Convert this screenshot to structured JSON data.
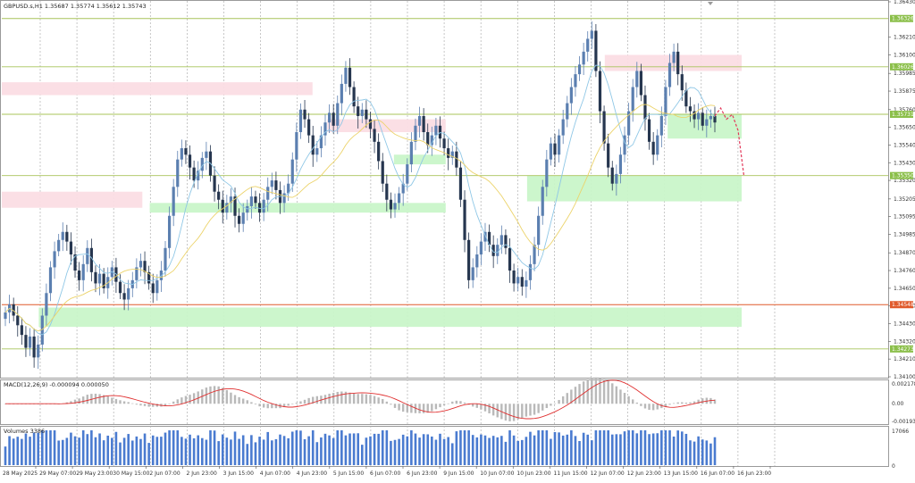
{
  "header": {
    "symbol_line": "GBPUSD.s,H1  1.35687 1.35774 1.35612 1.35743"
  },
  "panels": {
    "macd_label": "MACD(12,26,9) -0.000094 0.000050",
    "volume_label": "Volumes 3386"
  },
  "colors": {
    "bull": "#5b7fb0",
    "bear": "#26364f",
    "ma_fast": "#8fc7e6",
    "ma_slow": "#ecd36a",
    "level_line": "#a8c45a",
    "red_line": "#e05a2b",
    "supply_zone": "#fbdde4",
    "demand_zone": "#c9f5c9",
    "forecast": "#e3385a",
    "macd_hist": "#b9b9b9",
    "macd_signal": "#e03030",
    "volume": "#4a7bd0"
  },
  "chart_data": {
    "type": "candlestick",
    "ylim": [
      1.341,
      1.3643
    ],
    "price_ticks": [
      "1.36430",
      "1.36210",
      "1.36100",
      "1.35985",
      "1.35875",
      "1.35760",
      "1.35650",
      "1.35540",
      "1.35430",
      "1.35320",
      "1.35205",
      "1.35095",
      "1.34985",
      "1.34870",
      "1.34760",
      "1.34650",
      "1.34540",
      "1.34430",
      "1.34320",
      "1.34210",
      "1.34100"
    ],
    "price_tick_values": [
      1.3643,
      1.3621,
      1.361,
      1.35985,
      1.35875,
      1.3576,
      1.3565,
      1.3554,
      1.3543,
      1.3532,
      1.35205,
      1.35095,
      1.34985,
      1.3487,
      1.3476,
      1.3465,
      1.3454,
      1.3443,
      1.3432,
      1.3421,
      1.341
    ],
    "level_labels": [
      "1.36326",
      "1.36026",
      "1.35731",
      "1.35350",
      "1.34548",
      "1.34273"
    ],
    "level_values": [
      1.36326,
      1.36026,
      1.35731,
      1.3535,
      1.34548,
      1.34273
    ],
    "level_colors": [
      "#8bbf4a",
      "#8bbf4a",
      "#8bbf4a",
      "#8bbf4a",
      "#e05a2b",
      "#8bbf4a"
    ],
    "time_labels": [
      "28 May 2025",
      "29 May 07:00",
      "29 May 23:00",
      "30 May 15:00",
      "2 Jun 07:00",
      "2 Jun 23:00",
      "3 Jun 15:00",
      "4 Jun 07:00",
      "4 Jun 23:00",
      "5 Jun 15:00",
      "6 Jun 07:00",
      "6 Jun 23:00",
      "9 Jun 15:00",
      "10 Jun 07:00",
      "10 Jun 23:00",
      "11 Jun 15:00",
      "12 Jun 07:00",
      "12 Jun 23:00",
      "13 Jun 15:00",
      "16 Jun 07:00",
      "16 Jun 23:00"
    ],
    "zones": [
      {
        "kind": "supply",
        "x0": 0.0,
        "x1": 0.42,
        "p0": 1.3593,
        "p1": 1.3585
      },
      {
        "kind": "supply",
        "x0": 0.0,
        "x1": 0.19,
        "p0": 1.3525,
        "p1": 1.3515
      },
      {
        "kind": "supply",
        "x0": 0.44,
        "x1": 0.6,
        "p0": 1.357,
        "p1": 1.3562
      },
      {
        "kind": "supply",
        "x0": 0.815,
        "x1": 1.0,
        "p0": 1.361,
        "p1": 1.36
      },
      {
        "kind": "demand",
        "x0": 0.2,
        "x1": 0.6,
        "p0": 1.3518,
        "p1": 1.3512
      },
      {
        "kind": "demand",
        "x0": 0.53,
        "x1": 0.6,
        "p0": 1.3548,
        "p1": 1.3542
      },
      {
        "kind": "demand",
        "x0": 0.71,
        "x1": 1.0,
        "p0": 1.3535,
        "p1": 1.3519
      },
      {
        "kind": "demand",
        "x0": 0.9,
        "x1": 1.0,
        "p0": 1.3573,
        "p1": 1.3558
      },
      {
        "kind": "demand",
        "x0": 0.05,
        "x1": 1.0,
        "p0": 1.3453,
        "p1": 1.3441
      }
    ],
    "close_series": [
      1.345,
      1.3455,
      1.3448,
      1.3442,
      1.3436,
      1.3428,
      1.3435,
      1.3422,
      1.343,
      1.3448,
      1.3462,
      1.3478,
      1.3488,
      1.3495,
      1.35,
      1.3494,
      1.3486,
      1.3476,
      1.347,
      1.348,
      1.349,
      1.3475,
      1.3468,
      1.3474,
      1.3465,
      1.3472,
      1.3478,
      1.3469,
      1.3462,
      1.3458,
      1.3465,
      1.347,
      1.3478,
      1.3482,
      1.3475,
      1.3468,
      1.3462,
      1.347,
      1.3476,
      1.349,
      1.351,
      1.3528,
      1.3545,
      1.3552,
      1.3548,
      1.354,
      1.3532,
      1.3538,
      1.3546,
      1.355,
      1.3535,
      1.3525,
      1.352,
      1.3512,
      1.3518,
      1.3522,
      1.351,
      1.3505,
      1.3512,
      1.3516,
      1.3522,
      1.3518,
      1.3512,
      1.352,
      1.3528,
      1.3532,
      1.3526,
      1.3518,
      1.3524,
      1.353,
      1.3545,
      1.3562,
      1.3576,
      1.357,
      1.356,
      1.3548,
      1.3552,
      1.356,
      1.3568,
      1.3574,
      1.3566,
      1.358,
      1.3592,
      1.3602,
      1.359,
      1.3578,
      1.3572,
      1.3576,
      1.357,
      1.3564,
      1.3556,
      1.3544,
      1.353,
      1.352,
      1.3514,
      1.3518,
      1.3524,
      1.353,
      1.3542,
      1.3556,
      1.3566,
      1.3572,
      1.3562,
      1.3554,
      1.356,
      1.3566,
      1.3558,
      1.3552,
      1.3546,
      1.355,
      1.354,
      1.352,
      1.3495,
      1.347,
      1.3478,
      1.3486,
      1.3494,
      1.35,
      1.3492,
      1.3485,
      1.3492,
      1.3498,
      1.349,
      1.3476,
      1.3468,
      1.3472,
      1.3466,
      1.347,
      1.348,
      1.3492,
      1.351,
      1.3528,
      1.3545,
      1.3555,
      1.3548,
      1.356,
      1.357,
      1.358,
      1.359,
      1.3598,
      1.3604,
      1.3612,
      1.362,
      1.3625,
      1.36,
      1.3575,
      1.3555,
      1.354,
      1.353,
      1.3536,
      1.3548,
      1.356,
      1.3575,
      1.359,
      1.36,
      1.3585,
      1.357,
      1.3556,
      1.3548,
      1.356,
      1.3572,
      1.359,
      1.3605,
      1.3612,
      1.3598,
      1.3588,
      1.3578,
      1.3575,
      1.357,
      1.3574,
      1.3566,
      1.357,
      1.3572,
      1.3568
    ],
    "forecast_path": [
      1.3572,
      1.3577,
      1.357,
      1.3573,
      1.3563,
      1.3535
    ],
    "macd_scale": [
      "0.002178",
      "0.00",
      "-0.001936"
    ],
    "macd_scale_values": [
      0.002178,
      0.0,
      -0.001936
    ],
    "volume_scale": [
      "17066",
      "0"
    ],
    "volume_scale_values": [
      17066,
      0
    ]
  }
}
